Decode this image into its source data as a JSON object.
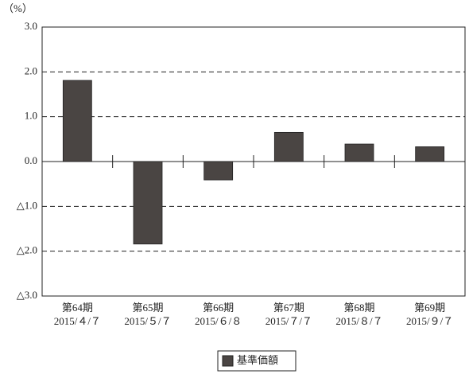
{
  "chart_data": {
    "type": "bar",
    "y_label": "（%）",
    "categories": [
      [
        "第64期",
        "2015/４/７"
      ],
      [
        "第65期",
        "2015/５/７"
      ],
      [
        "第66期",
        "2015/６/８"
      ],
      [
        "第67期",
        "2015/７/７"
      ],
      [
        "第68期",
        "2015/８/７"
      ],
      [
        "第69期",
        "2015/９/７"
      ]
    ],
    "series": [
      {
        "name": "基準価額",
        "color": "#4a4543",
        "values": [
          1.81,
          -1.84,
          -0.41,
          0.65,
          0.39,
          0.33
        ]
      }
    ],
    "ylim": [
      -3,
      3
    ],
    "yticks": [
      {
        "value": 3,
        "label": "3.0"
      },
      {
        "value": 2,
        "label": "2.0"
      },
      {
        "value": 1,
        "label": "1.0"
      },
      {
        "value": 0,
        "label": "0.0"
      },
      {
        "value": -1,
        "label": "△1.0"
      },
      {
        "value": -2,
        "label": "△2.0"
      },
      {
        "value": -3,
        "label": "△3.0"
      }
    ],
    "grid": true,
    "legend": "bottom"
  }
}
